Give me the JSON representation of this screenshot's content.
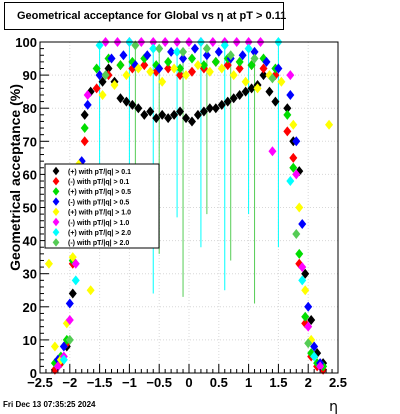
{
  "chart_data": {
    "type": "scatter",
    "title": "Geometrical acceptance for Global vs   η  at pT > 0.11",
    "xlabel": "η",
    "ylabel": "Geometrical acceptance (%)",
    "xlim": [
      -2.5,
      2.5
    ],
    "ylim": [
      0,
      100
    ],
    "x_ticks": [
      "−2.5",
      "−2",
      "−1.5",
      "−1",
      "−0.5",
      "0",
      "0.5",
      "1",
      "1.5",
      "2",
      "2.5"
    ],
    "y_ticks": [
      "0",
      "10",
      "20",
      "30",
      "40",
      "50",
      "60",
      "70",
      "80",
      "90",
      "100"
    ],
    "grid": true,
    "legend_position": "left-middle",
    "footer": "Fri Dec 13 07:35:25 2024",
    "series": [
      {
        "name": "(+) with pT/|q| > 0.1",
        "color": "#000000",
        "x": [
          -2.2,
          -2.15,
          -2.05,
          -1.95,
          -1.85,
          -1.75,
          -1.65,
          -1.45,
          -1.35,
          -1.25,
          -1.15,
          -1.05,
          -0.95,
          -0.85,
          -0.75,
          -0.65,
          -0.55,
          -0.45,
          -0.35,
          -0.25,
          -0.15,
          -0.05,
          0.05,
          0.15,
          0.25,
          0.35,
          0.45,
          0.55,
          0.65,
          0.75,
          0.85,
          0.95,
          1.05,
          1.15,
          1.25,
          1.35,
          1.45,
          1.65,
          1.75,
          1.85,
          1.95,
          2.05,
          2.15,
          2.25
        ],
        "y": [
          2,
          3,
          8,
          24,
          55,
          78,
          85,
          88,
          92,
          88,
          83,
          82,
          81,
          80,
          78,
          79,
          77,
          78,
          77,
          78,
          79,
          77,
          76,
          78,
          79,
          80,
          80,
          81,
          82,
          83,
          84,
          85,
          86,
          87,
          90,
          85,
          82,
          80,
          70,
          61,
          30,
          16,
          6,
          3
        ]
      },
      {
        "name": "(-) with pT/|q| > 0.1",
        "color": "#ff0000",
        "x": [
          -2.25,
          -2.15,
          -2.05,
          -1.95,
          -1.85,
          -1.75,
          -1.55,
          -1.35,
          -1.15,
          -0.95,
          -0.75,
          -0.55,
          -0.35,
          -0.15,
          0.05,
          0.25,
          0.45,
          0.65,
          0.85,
          1.05,
          1.25,
          1.45,
          1.65,
          1.75,
          1.85,
          1.95,
          2.05,
          2.15,
          2.25
        ],
        "y": [
          1,
          3,
          9,
          33,
          50,
          70,
          86,
          90,
          93,
          92,
          93,
          91,
          92,
          90,
          91,
          92,
          94,
          93,
          92,
          93,
          92,
          90,
          73,
          65,
          33,
          15,
          5,
          2,
          1
        ]
      },
      {
        "name": "(+) with pT/|q| > 0.5",
        "color": "#00dd00",
        "x": [
          -2.25,
          -2.15,
          -2.05,
          -1.95,
          -1.85,
          -1.75,
          -1.55,
          -1.35,
          -1.15,
          -0.95,
          -0.75,
          -0.55,
          -0.35,
          -0.15,
          0.05,
          0.25,
          0.45,
          0.65,
          0.85,
          1.05,
          1.25,
          1.45,
          1.65,
          1.75,
          1.85,
          1.95,
          2.05,
          2.15,
          2.25
        ],
        "y": [
          3,
          5,
          10,
          34,
          55,
          74,
          92,
          95,
          93,
          94,
          95,
          93,
          94,
          92,
          95,
          93,
          94,
          95,
          94,
          93,
          95,
          92,
          78,
          62,
          36,
          17,
          6,
          3,
          2
        ]
      },
      {
        "name": "(-) with pT/|q| > 0.5",
        "color": "#0000ff",
        "x": [
          -2.2,
          -2.1,
          -2.0,
          -1.9,
          -1.8,
          -1.7,
          -1.5,
          -1.3,
          -1.1,
          -0.9,
          -0.7,
          -0.5,
          -0.3,
          -0.1,
          0.1,
          0.3,
          0.5,
          0.7,
          0.9,
          1.1,
          1.3,
          1.5,
          1.7,
          1.8,
          1.9,
          2.0,
          2.1,
          2.2
        ],
        "y": [
          4,
          8,
          21,
          42,
          64,
          81,
          90,
          95,
          96,
          93,
          96,
          92,
          97,
          95,
          98,
          96,
          97,
          95,
          96,
          97,
          94,
          92,
          84,
          70,
          45,
          20,
          8,
          3
        ]
      },
      {
        "name": "(+) with pT/|q| > 1.0",
        "color": "#ffff00",
        "x": [
          -2.35,
          -2.25,
          -2.15,
          -2.05,
          -1.95,
          -1.85,
          -1.65,
          -1.45,
          -1.25,
          -1.05,
          -0.85,
          -0.65,
          -0.45,
          -0.25,
          -0.05,
          0.15,
          0.35,
          0.55,
          0.75,
          0.95,
          1.15,
          1.35,
          1.55,
          1.75,
          1.85,
          1.95,
          2.05,
          2.35
        ],
        "y": [
          33,
          8,
          4,
          15,
          35,
          63,
          25,
          84,
          87,
          90,
          92,
          91,
          88,
          92,
          90,
          93,
          91,
          92,
          90,
          88,
          86,
          90,
          88,
          75,
          50,
          25,
          10,
          75
        ]
      },
      {
        "name": "(-) with pT/|q| > 1.0",
        "color": "#ff00ff",
        "x": [
          -2.2,
          -2.1,
          -2.0,
          -1.9,
          -1.8,
          -1.7,
          -1.4,
          -1.2,
          -1.0,
          -0.8,
          -0.6,
          -0.4,
          -0.2,
          0.0,
          0.2,
          0.4,
          0.6,
          0.8,
          1.0,
          1.2,
          1.4,
          1.7,
          1.8,
          1.9,
          2.0,
          2.2
        ],
        "y": [
          2,
          5,
          16,
          33,
          62,
          84,
          100,
          100,
          100,
          100,
          100,
          100,
          100,
          100,
          100,
          100,
          100,
          100,
          100,
          100,
          67,
          90,
          60,
          32,
          14,
          2
        ]
      },
      {
        "name": "(+) with pT/|q| > 2.0",
        "color": "#00ffff",
        "x": [
          -2.1,
          -1.9,
          -1.7,
          -1.5,
          -1.0,
          -0.6,
          -0.2,
          0.2,
          0.6,
          1.0,
          1.5,
          1.7,
          1.9,
          2.1
        ],
        "y": [
          4,
          28,
          55,
          99,
          100,
          98,
          97,
          100,
          99,
          98,
          100,
          58,
          28,
          5
        ]
      },
      {
        "name": "(-) with pT/|q| > 2.0",
        "color": "#55cc55",
        "x": [
          -2.0,
          -1.8,
          -1.4,
          -0.9,
          -0.5,
          -0.1,
          0.3,
          0.7,
          1.1,
          1.4,
          1.8,
          2.0
        ],
        "y": [
          10,
          40,
          90,
          99,
          98,
          97,
          98,
          96,
          95,
          89,
          42,
          9
        ]
      }
    ]
  }
}
